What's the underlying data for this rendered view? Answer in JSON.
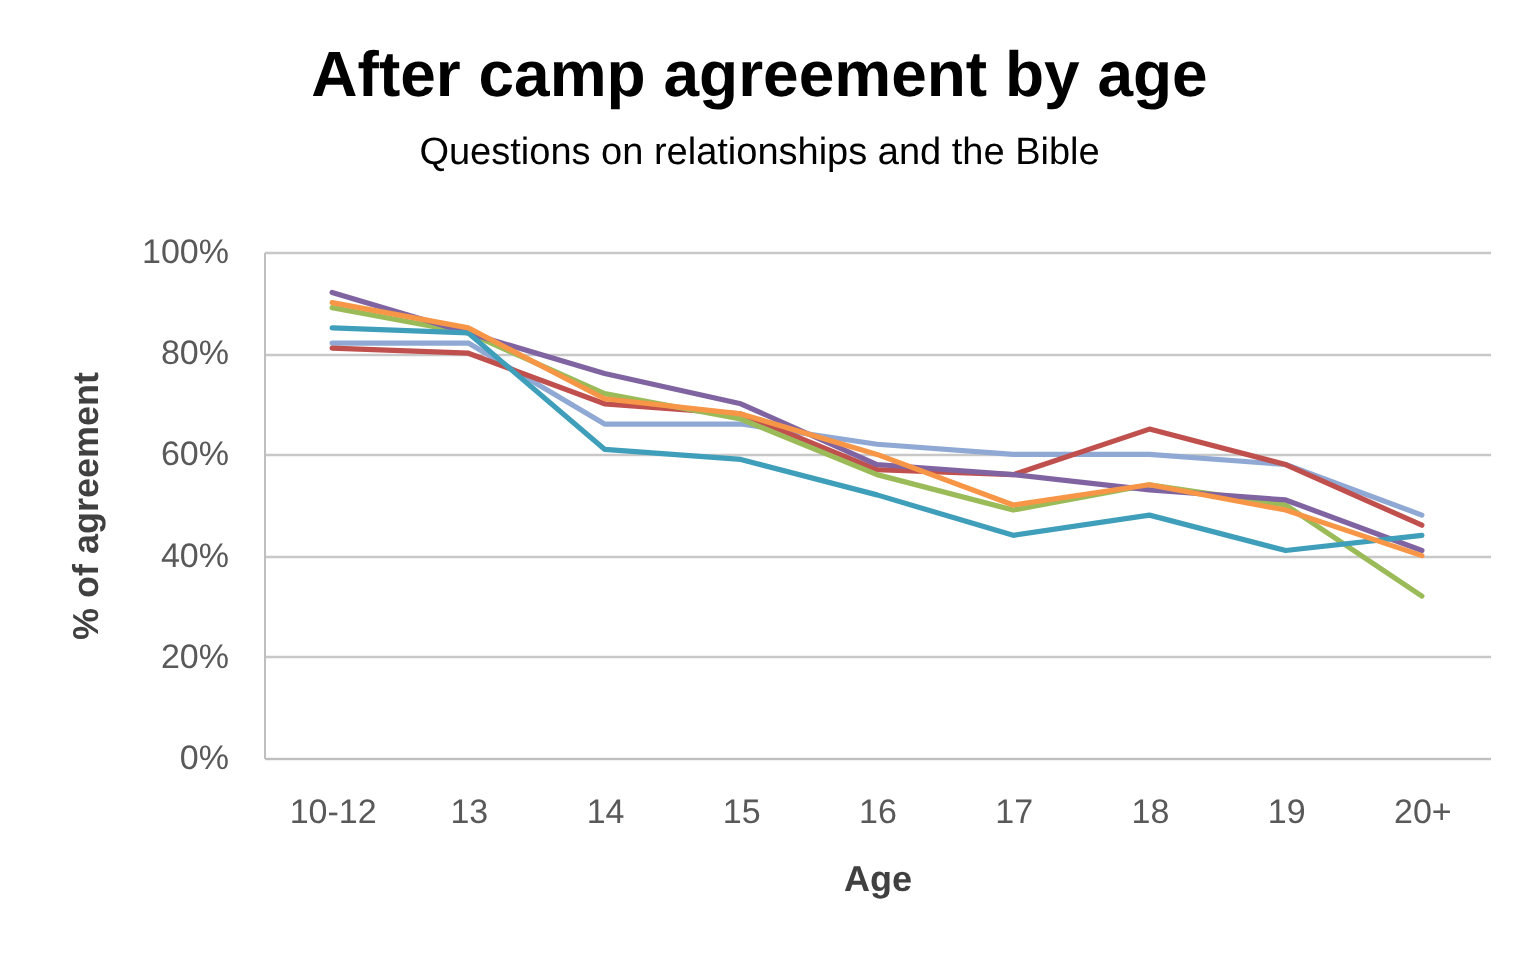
{
  "chart_data": {
    "type": "line",
    "title": "After camp agreement by age",
    "subtitle": "Questions on relationships and the Bible",
    "xlabel": "Age",
    "ylabel": "% of agreement",
    "categories": [
      "10-12",
      "13",
      "14",
      "15",
      "16",
      "17",
      "18",
      "19",
      "20+"
    ],
    "series": [
      {
        "color": "#8fa9d4",
        "values": [
          82,
          82,
          66,
          66,
          62,
          60,
          60,
          58,
          48
        ]
      },
      {
        "color": "#c0504d",
        "values": [
          81,
          80,
          70,
          68,
          57,
          56,
          65,
          58,
          46
        ]
      },
      {
        "color": "#9bbb59",
        "values": [
          89,
          84,
          72,
          67,
          56,
          49,
          54,
          50,
          32
        ]
      },
      {
        "color": "#8064a2",
        "values": [
          92,
          84,
          76,
          70,
          58,
          56,
          53,
          51,
          41
        ]
      },
      {
        "color": "#3f9fba",
        "values": [
          85,
          84,
          61,
          59,
          52,
          44,
          48,
          41,
          44
        ]
      },
      {
        "color": "#f79646",
        "values": [
          90,
          85,
          71,
          68,
          60,
          50,
          54,
          49,
          40
        ]
      }
    ],
    "ylim": [
      0,
      100
    ],
    "yticks": [
      {
        "value": 0,
        "label": "0%"
      },
      {
        "value": 20,
        "label": "20%"
      },
      {
        "value": 40,
        "label": "40%"
      },
      {
        "value": 60,
        "label": "60%"
      },
      {
        "value": 80,
        "label": "80%"
      },
      {
        "value": 100,
        "label": "100%"
      }
    ],
    "grid": "y",
    "legend": false,
    "marker": "none",
    "line_style": "solid"
  }
}
